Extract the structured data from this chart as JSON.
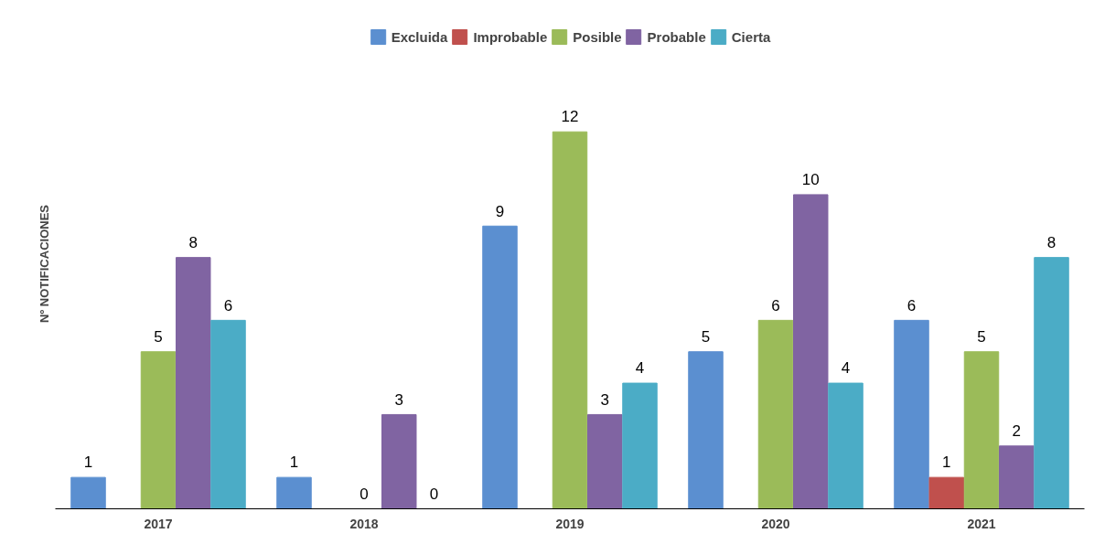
{
  "chart_data": {
    "type": "bar",
    "ylabel": "Nº NOTIFICACIONES",
    "categories": [
      "2017",
      "2018",
      "2019",
      "2020",
      "2021"
    ],
    "series": [
      {
        "name": "Excluida",
        "color": "#5b8fd0",
        "values": [
          1,
          1,
          9,
          5,
          6
        ]
      },
      {
        "name": "Improbable",
        "color": "#c0504d",
        "values": [
          null,
          null,
          null,
          null,
          1
        ]
      },
      {
        "name": "Posible",
        "color": "#9bbb59",
        "values": [
          5,
          0,
          12,
          6,
          5
        ]
      },
      {
        "name": "Probable",
        "color": "#8064a2",
        "values": [
          8,
          3,
          3,
          10,
          2
        ]
      },
      {
        "name": "Cierta",
        "color": "#4bacc6",
        "values": [
          6,
          0,
          4,
          4,
          8
        ]
      }
    ],
    "data_labels": true,
    "legend": "top",
    "grid": false
  }
}
